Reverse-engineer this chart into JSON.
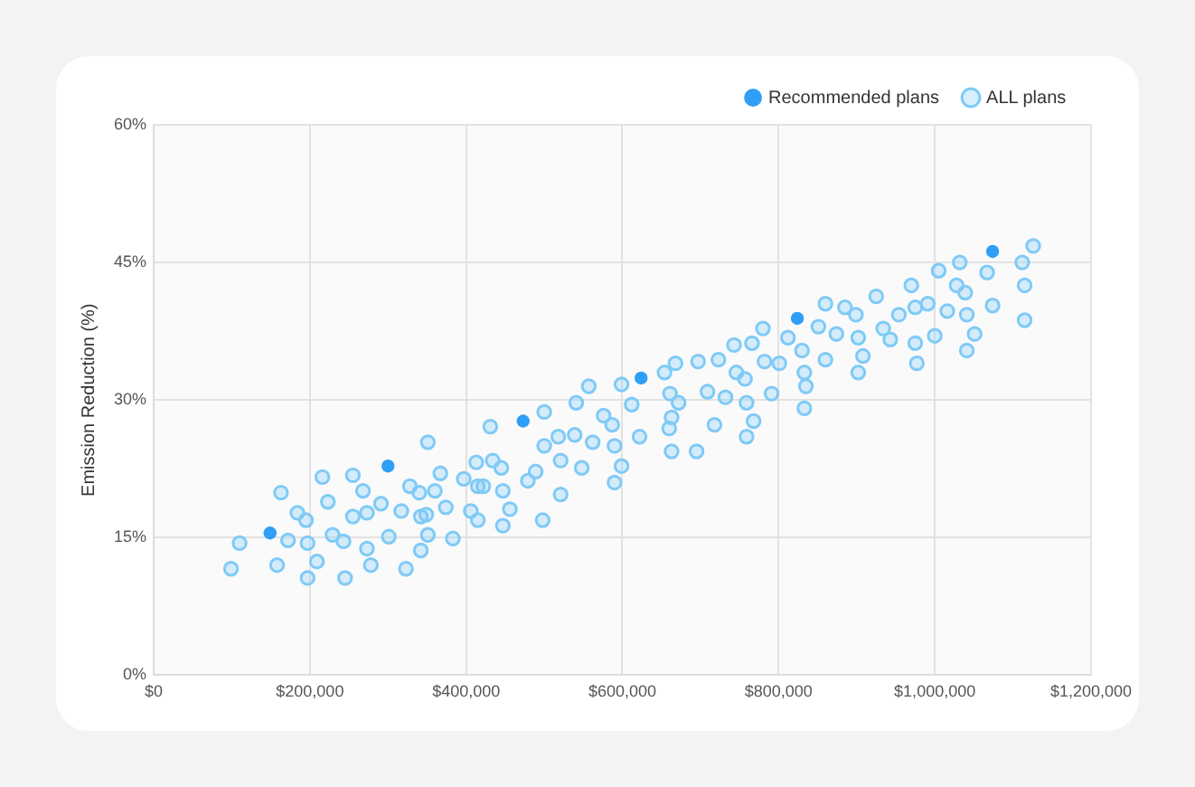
{
  "chart_data": {
    "type": "scatter",
    "ylabel": "Emission Reduction (%)",
    "xlim": [
      0,
      1200000
    ],
    "ylim": [
      0,
      60
    ],
    "xticks": [
      {
        "value": 0,
        "label": "$0"
      },
      {
        "value": 200000,
        "label": "$200,000"
      },
      {
        "value": 400000,
        "label": "$400,000"
      },
      {
        "value": 600000,
        "label": "$600,000"
      },
      {
        "value": 800000,
        "label": "$800,000"
      },
      {
        "value": 1000000,
        "label": "$1,000,000"
      },
      {
        "value": 1200000,
        "label": "$1,200,000"
      }
    ],
    "yticks": [
      {
        "value": 0,
        "label": "0%"
      },
      {
        "value": 15,
        "label": "15%"
      },
      {
        "value": 30,
        "label": "30%"
      },
      {
        "value": 45,
        "label": "45%"
      },
      {
        "value": 60,
        "label": "60%"
      }
    ],
    "grid": true,
    "legend": "top right",
    "marker": "circle",
    "series": [
      {
        "name": "Recommended plans",
        "color": "#2f9ef6",
        "x": [
          149000,
          300000,
          473000,
          624000,
          824000,
          1074000
        ],
        "values": [
          15.5,
          22.8,
          27.7,
          32.4,
          38.9,
          46.2
        ]
      },
      {
        "name": "ALL plans",
        "color": "#7fcaf7",
        "x": [
          99000,
          110000,
          158000,
          163000,
          172000,
          184000,
          195000,
          197000,
          197000,
          209000,
          216000,
          223000,
          229000,
          243000,
          245000,
          255000,
          255000,
          268000,
          273000,
          273000,
          278000,
          291000,
          301000,
          317000,
          323000,
          328000,
          340000,
          342000,
          342000,
          349000,
          351000,
          351000,
          360000,
          367000,
          374000,
          383000,
          397000,
          406000,
          413000,
          415000,
          415000,
          422000,
          431000,
          434000,
          445000,
          447000,
          447000,
          456000,
          479000,
          489000,
          498000,
          500000,
          500000,
          518000,
          521000,
          521000,
          539000,
          541000,
          548000,
          557000,
          562000,
          576000,
          587000,
          590000,
          590000,
          599000,
          599000,
          612000,
          622000,
          654000,
          661000,
          663000,
          660000,
          663000,
          668000,
          672000,
          695000,
          697000,
          709000,
          718000,
          723000,
          732000,
          743000,
          746000,
          757000,
          759000,
          759000,
          766000,
          768000,
          780000,
          782000,
          791000,
          801000,
          812000,
          830000,
          833000,
          835000,
          833000,
          851000,
          860000,
          860000,
          874000,
          885000,
          899000,
          902000,
          908000,
          902000,
          925000,
          934000,
          943000,
          954000,
          970000,
          975000,
          975000,
          977000,
          991000,
          1000000,
          1005000,
          1016000,
          1028000,
          1032000,
          1039000,
          1041000,
          1051000,
          1041000,
          1067000,
          1074000,
          1112000,
          1115000,
          1115000,
          1126000
        ],
        "values": [
          11.6,
          14.4,
          12.0,
          19.9,
          14.7,
          17.7,
          16.9,
          14.4,
          10.6,
          12.4,
          21.6,
          18.9,
          15.3,
          14.6,
          10.6,
          21.8,
          17.3,
          20.1,
          17.7,
          13.8,
          12.0,
          18.7,
          15.1,
          17.9,
          11.6,
          20.6,
          19.9,
          17.3,
          13.6,
          17.5,
          25.4,
          15.3,
          20.1,
          22.0,
          18.3,
          14.9,
          21.4,
          17.9,
          23.2,
          20.6,
          16.9,
          20.6,
          27.1,
          23.4,
          22.6,
          20.1,
          16.3,
          18.1,
          21.2,
          22.2,
          16.9,
          28.7,
          25.0,
          26.0,
          23.4,
          19.7,
          26.2,
          29.7,
          22.6,
          31.5,
          25.4,
          28.3,
          27.3,
          25.0,
          21.0,
          31.7,
          22.8,
          29.5,
          26.0,
          33.0,
          30.7,
          28.1,
          26.9,
          24.4,
          34.0,
          29.7,
          24.4,
          34.2,
          30.9,
          27.3,
          34.4,
          30.3,
          36.0,
          33.0,
          32.3,
          29.7,
          26.0,
          36.2,
          27.7,
          37.8,
          34.2,
          30.7,
          34.0,
          36.8,
          35.4,
          33.0,
          31.5,
          29.1,
          38.0,
          40.5,
          34.4,
          37.2,
          40.1,
          39.3,
          36.8,
          34.8,
          33.0,
          41.3,
          37.8,
          36.6,
          39.3,
          42.5,
          40.1,
          36.2,
          34.0,
          40.5,
          37.0,
          44.1,
          39.7,
          42.5,
          45.0,
          41.7,
          39.3,
          37.2,
          35.4,
          43.9,
          40.3,
          45.0,
          42.5,
          38.7,
          46.8
        ]
      }
    ]
  }
}
